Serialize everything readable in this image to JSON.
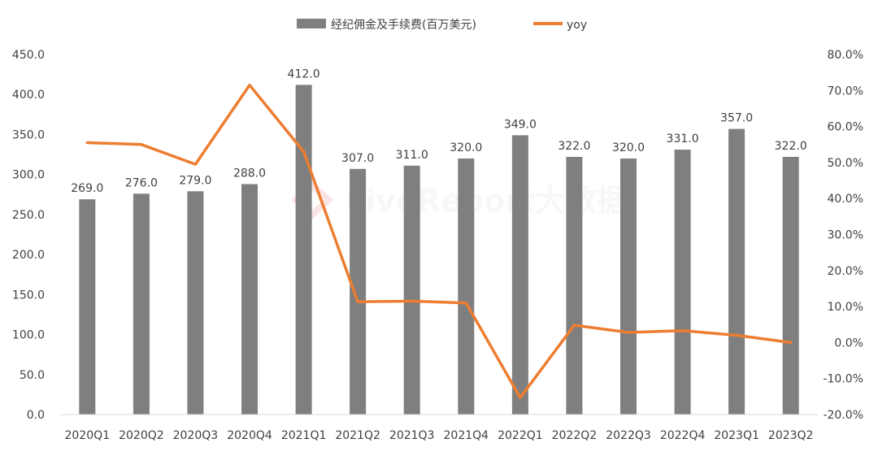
{
  "chart_data": {
    "type": "bar+line",
    "categories": [
      "2020Q1",
      "2020Q2",
      "2020Q3",
      "2020Q4",
      "2021Q1",
      "2021Q2",
      "2021Q3",
      "2021Q4",
      "2022Q1",
      "2022Q2",
      "2022Q3",
      "2022Q4",
      "2023Q1",
      "2023Q2"
    ],
    "series": [
      {
        "name": "经纪佣金及手续费(百万美元)",
        "type": "bar",
        "axis": "left",
        "color": "#7f7f7f",
        "values": [
          269.0,
          276.0,
          279.0,
          288.0,
          412.0,
          307.0,
          311.0,
          320.0,
          349.0,
          322.0,
          320.0,
          331.0,
          357.0,
          322.0
        ],
        "data_labels": [
          "269.0",
          "276.0",
          "279.0",
          "288.0",
          "412.0",
          "307.0",
          "311.0",
          "320.0",
          "349.0",
          "322.0",
          "320.0",
          "331.0",
          "357.0",
          "322.0"
        ]
      },
      {
        "name": "yoy",
        "type": "line",
        "axis": "right",
        "color": "#ed7d31",
        "values": [
          55.5,
          55.0,
          49.5,
          71.5,
          53.0,
          11.3,
          11.5,
          11.0,
          -15.3,
          4.8,
          2.8,
          3.3,
          2.0,
          0.0
        ]
      }
    ],
    "y_left": {
      "min": 0,
      "max": 450,
      "step": 50,
      "ticks": [
        "0.0",
        "50.0",
        "100.0",
        "150.0",
        "200.0",
        "250.0",
        "300.0",
        "350.0",
        "400.0",
        "450.0"
      ]
    },
    "y_right": {
      "min": -20,
      "max": 80,
      "step": 10,
      "ticks": [
        "-20.0%",
        "-10.0%",
        "0.0%",
        "10.0%",
        "20.0%",
        "30.0%",
        "40.0%",
        "50.0%",
        "60.0%",
        "70.0%",
        "80.0%"
      ]
    },
    "legend_position": "top-center",
    "grid": false,
    "watermark": "LiveReport大数据"
  }
}
